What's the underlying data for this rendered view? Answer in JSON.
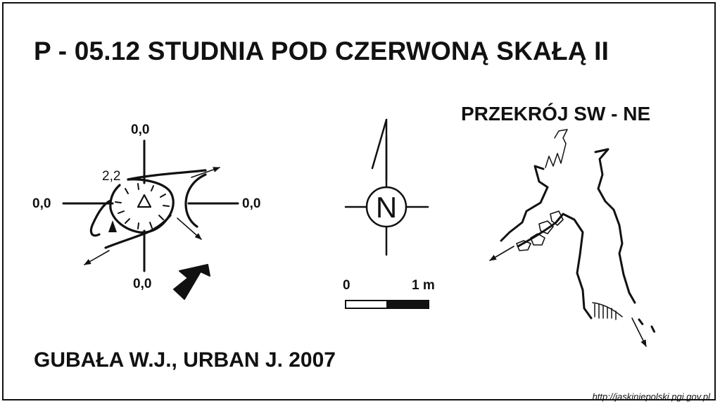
{
  "title": "P - 05.12  STUDNIA POD CZERWONĄ SKAŁĄ II",
  "section_title": "PRZEKRÓJ SW - NE",
  "authors": "GUBAŁA W.J., URBAN J. 2007",
  "source_url": "http://jaskiniepolski.pgi.gov.pl",
  "plan": {
    "label_top": "0,0",
    "label_left": "0,0",
    "label_right": "0,0",
    "label_bottom": "0,0",
    "depth_label": "2,2"
  },
  "north_arrow": {
    "letter": "N"
  },
  "scale_bar": {
    "label_start": "0",
    "label_end": "1 m"
  },
  "icons": [
    "cross-axes-icon",
    "survey-station-icon",
    "entrance-arrow-icon",
    "north-arrow-icon",
    "scale-bar-icon",
    "cross-section-drawing-icon"
  ],
  "colors": {
    "ink": "#111111",
    "paper": "#ffffff"
  }
}
